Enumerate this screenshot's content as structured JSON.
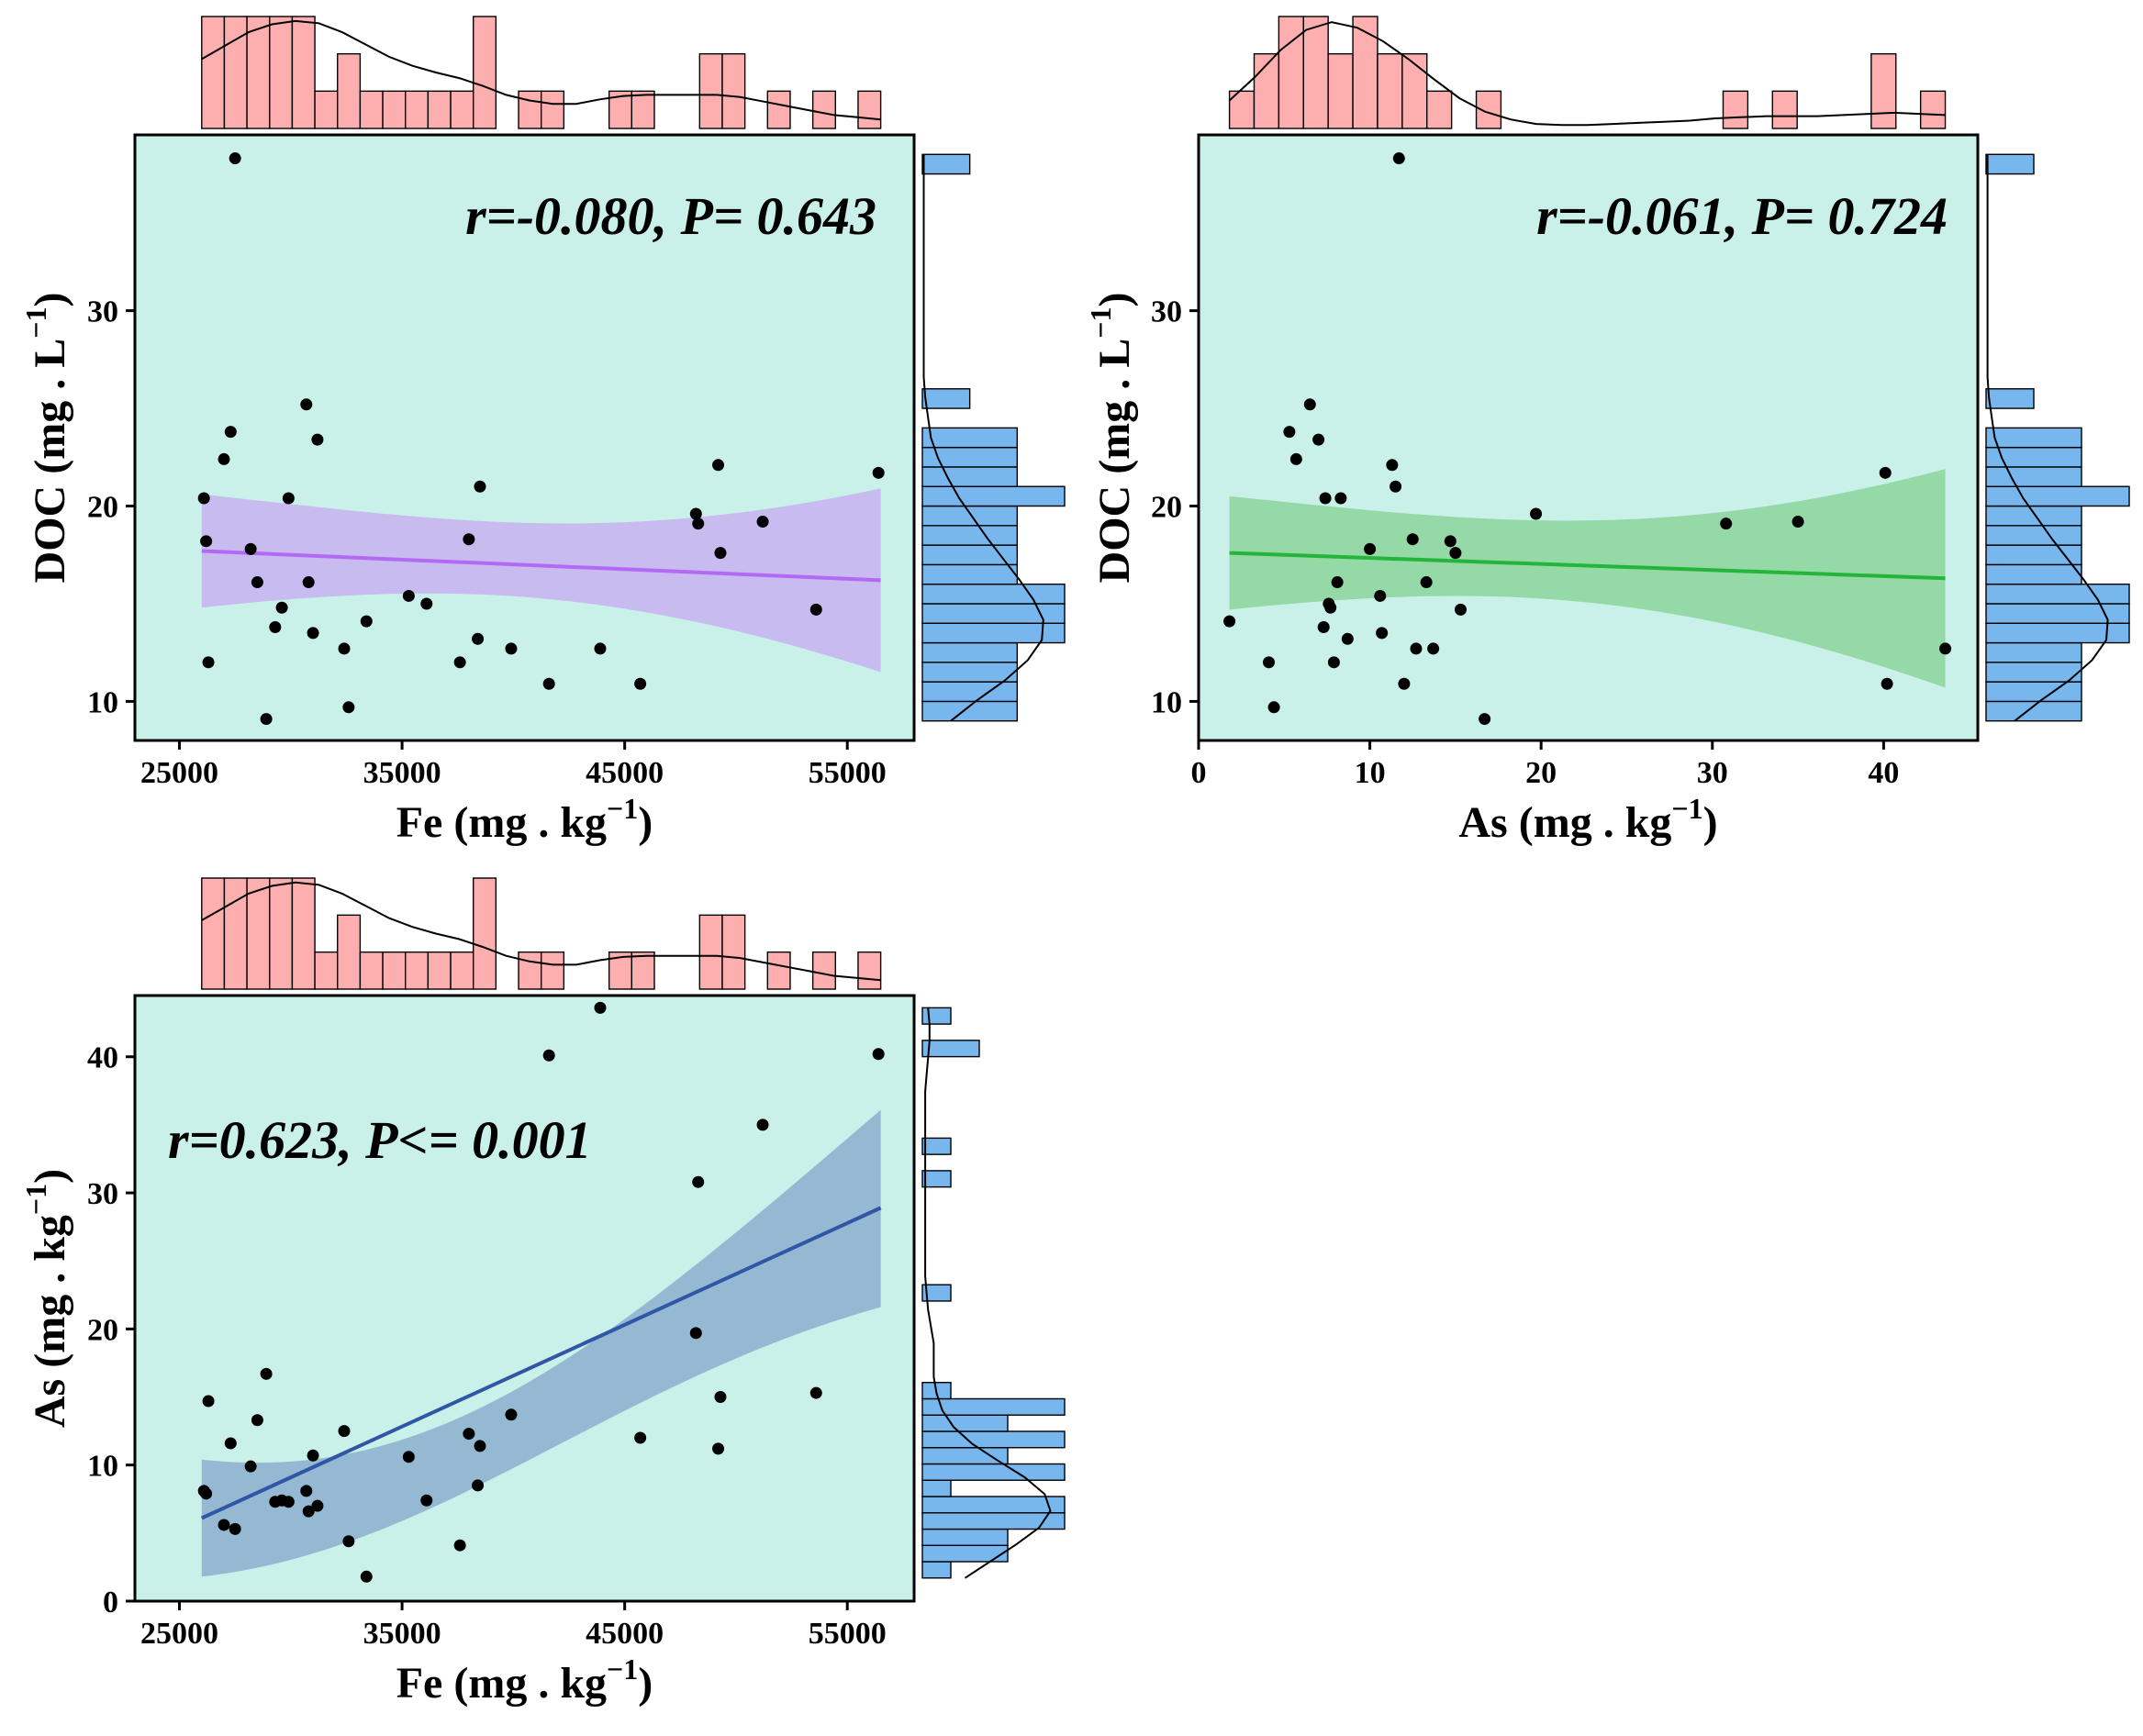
{
  "colors": {
    "panel_bg": "#c9f1e9",
    "top_hist": "#fdaeae",
    "side_hist": "#78b6ee",
    "point": "#000000",
    "axis": "#000000"
  },
  "chart_data": [
    {
      "type": "scatter",
      "title": "",
      "annotation": "r=-0.080, P= 0.643",
      "xlabel": "Fe (mg . kg⁻¹)",
      "ylabel": "DOC (mg . L⁻¹)",
      "xlim": [
        23000,
        58000
      ],
      "ylim": [
        8,
        39
      ],
      "x_ticks": [
        25000,
        35000,
        45000,
        55000
      ],
      "x_tick_labels": [
        "25000",
        "35000",
        "45000",
        "55000"
      ],
      "y_ticks": [
        10,
        20,
        30
      ],
      "y_tick_labels": [
        "10",
        "20",
        "30"
      ],
      "line_color": "#b469f4",
      "band_color": "#c7b5ef",
      "fit": {
        "x": [
          26000,
          56500
        ],
        "y": [
          17.7,
          16.2
        ],
        "lower": [
          14.8,
          11.5
        ],
        "upper": [
          20.6,
          20.9
        ]
      },
      "points": {
        "x": [
          26100,
          26200,
          26300,
          27000,
          27300,
          27500,
          28200,
          28500,
          28900,
          29300,
          29600,
          29900,
          30700,
          30800,
          31000,
          31200,
          32400,
          32600,
          33400,
          35300,
          36100,
          37600,
          38000,
          38400,
          38500,
          39900,
          41600,
          43900,
          45700,
          48200,
          48300,
          49200,
          49300,
          51200,
          53600,
          56400
        ],
        "y": [
          20.4,
          18.2,
          12.0,
          22.4,
          23.8,
          37.8,
          17.8,
          16.1,
          9.1,
          13.8,
          14.8,
          20.4,
          25.2,
          16.1,
          13.5,
          23.4,
          12.7,
          9.7,
          14.1,
          15.4,
          15.0,
          12.0,
          18.3,
          13.2,
          21.0,
          12.7,
          10.9,
          12.7,
          10.9,
          19.6,
          19.1,
          22.1,
          17.6,
          19.2,
          14.7,
          21.7
        ]
      },
      "top_hist": {
        "range": [
          26000,
          56500
        ],
        "counts": [
          3,
          3,
          3,
          3,
          3,
          1,
          2,
          1,
          1,
          1,
          1,
          1,
          3,
          0,
          1,
          1,
          0,
          0,
          1,
          1,
          0,
          0,
          2,
          2,
          0,
          1,
          0,
          1,
          0,
          1
        ],
        "density": [
          0.62,
          0.74,
          0.86,
          0.93,
          0.96,
          0.94,
          0.86,
          0.75,
          0.64,
          0.56,
          0.5,
          0.45,
          0.38,
          0.3,
          0.25,
          0.22,
          0.22,
          0.26,
          0.29,
          0.3,
          0.3,
          0.3,
          0.3,
          0.28,
          0.24,
          0.2,
          0.16,
          0.12,
          0.1,
          0.08
        ]
      },
      "side_hist": {
        "range": [
          9,
          38
        ],
        "counts": [
          4,
          4,
          4,
          4,
          6,
          6,
          6,
          4,
          4,
          4,
          4,
          6,
          4,
          4,
          4,
          0,
          2,
          0,
          0,
          0,
          0,
          0,
          0,
          0,
          0,
          0,
          0,
          0,
          2
        ],
        "density": [
          0.2,
          0.38,
          0.58,
          0.74,
          0.84,
          0.85,
          0.78,
          0.68,
          0.57,
          0.46,
          0.36,
          0.26,
          0.18,
          0.11,
          0.06,
          0.04,
          0.02,
          0.01,
          0.01,
          0.01,
          0.01,
          0.01,
          0.01,
          0.01,
          0.01,
          0.01,
          0.01,
          0.01,
          0.01
        ]
      }
    },
    {
      "type": "scatter",
      "title": "",
      "annotation": "r=-0.061, P= 0.724",
      "xlabel": "As (mg . kg⁻¹)",
      "ylabel": "DOC (mg . L⁻¹)",
      "xlim": [
        0,
        45.5
      ],
      "ylim": [
        8,
        39
      ],
      "x_ticks": [
        0,
        10,
        20,
        30,
        40
      ],
      "x_tick_labels": [
        "0",
        "10",
        "20",
        "30",
        "40"
      ],
      "y_ticks": [
        10,
        20,
        30
      ],
      "y_tick_labels": [
        "10",
        "20",
        "30"
      ],
      "line_color": "#23b53c",
      "band_color": "#8ed69e",
      "fit": {
        "x": [
          1.8,
          43.6
        ],
        "y": [
          17.6,
          16.3
        ],
        "lower": [
          14.7,
          10.7
        ],
        "upper": [
          20.5,
          21.9
        ]
      },
      "points": {
        "x": [
          1.8,
          4.1,
          4.4,
          5.3,
          5.7,
          6.5,
          7.0,
          7.3,
          7.4,
          7.6,
          7.7,
          7.9,
          8.1,
          8.3,
          8.7,
          10.0,
          10.6,
          10.7,
          11.3,
          11.5,
          11.7,
          12.0,
          12.5,
          12.7,
          13.3,
          13.7,
          14.7,
          15.0,
          15.3,
          16.7,
          19.7,
          30.8,
          35.0,
          40.1,
          40.2,
          43.6
        ],
        "y": [
          14.1,
          12.0,
          9.7,
          23.8,
          22.4,
          25.2,
          23.4,
          13.8,
          20.4,
          15.0,
          14.8,
          12.0,
          16.1,
          20.4,
          13.2,
          17.8,
          15.4,
          13.5,
          22.1,
          21.0,
          37.8,
          10.9,
          18.3,
          12.7,
          16.1,
          12.7,
          18.2,
          17.6,
          14.7,
          9.1,
          19.6,
          19.1,
          19.2,
          21.7,
          10.9,
          12.7
        ]
      },
      "top_hist": {
        "range": [
          1.8,
          43.6
        ],
        "counts": [
          1,
          2,
          3,
          3,
          2,
          3,
          2,
          2,
          1,
          0,
          1,
          0,
          0,
          0,
          0,
          0,
          0,
          0,
          0,
          0,
          1,
          0,
          1,
          0,
          0,
          0,
          2,
          0,
          1
        ],
        "density": [
          0.25,
          0.46,
          0.7,
          0.88,
          0.95,
          0.9,
          0.78,
          0.62,
          0.44,
          0.27,
          0.15,
          0.08,
          0.04,
          0.03,
          0.03,
          0.04,
          0.05,
          0.06,
          0.07,
          0.09,
          0.1,
          0.11,
          0.11,
          0.11,
          0.12,
          0.13,
          0.14,
          0.13,
          0.12
        ]
      },
      "side_hist": {
        "range": [
          9,
          38
        ],
        "counts": [
          4,
          4,
          4,
          4,
          6,
          6,
          6,
          4,
          4,
          4,
          4,
          6,
          4,
          4,
          4,
          0,
          2,
          0,
          0,
          0,
          0,
          0,
          0,
          0,
          0,
          0,
          0,
          0,
          2
        ],
        "density": [
          0.2,
          0.38,
          0.58,
          0.74,
          0.84,
          0.85,
          0.78,
          0.68,
          0.57,
          0.46,
          0.36,
          0.26,
          0.18,
          0.11,
          0.06,
          0.04,
          0.02,
          0.01,
          0.01,
          0.01,
          0.01,
          0.01,
          0.01,
          0.01,
          0.01,
          0.01,
          0.01,
          0.01,
          0.01
        ]
      }
    },
    {
      "type": "scatter",
      "title": "",
      "annotation": "r=0.623, P<= 0.001",
      "xlabel": "Fe (mg . kg⁻¹)",
      "ylabel": "As (mg . kg⁻¹)",
      "xlim": [
        23000,
        58000
      ],
      "ylim": [
        0,
        44.5
      ],
      "x_ticks": [
        25000,
        35000,
        45000,
        55000
      ],
      "x_tick_labels": [
        "25000",
        "35000",
        "45000",
        "55000"
      ],
      "y_ticks": [
        0,
        10,
        20,
        30,
        40
      ],
      "y_tick_labels": [
        "0",
        "10",
        "20",
        "30",
        "40"
      ],
      "line_color": "#3056a6",
      "band_color": "#8fb3cf",
      "fit": {
        "x": [
          26000,
          56500
        ],
        "y": [
          6.1,
          28.9
        ],
        "lower": [
          1.8,
          21.6
        ],
        "upper": [
          10.4,
          36.1
        ]
      },
      "points": {
        "x": [
          26100,
          26200,
          26300,
          27000,
          27300,
          27500,
          28200,
          28500,
          28900,
          29300,
          29600,
          29900,
          30700,
          30800,
          31000,
          31200,
          32400,
          32600,
          33400,
          35300,
          36100,
          37600,
          38000,
          38400,
          38500,
          39900,
          41600,
          43900,
          45700,
          48200,
          48300,
          49200,
          49300,
          51200,
          53600,
          56400
        ],
        "y": [
          8.1,
          7.9,
          14.7,
          5.6,
          11.6,
          5.3,
          9.9,
          13.3,
          16.7,
          7.3,
          7.4,
          7.3,
          8.1,
          6.6,
          10.7,
          7.0,
          12.5,
          4.4,
          1.8,
          10.6,
          7.4,
          4.1,
          12.3,
          8.5,
          11.4,
          13.7,
          40.1,
          43.6,
          12.0,
          19.7,
          30.8,
          11.2,
          15.0,
          35.0,
          15.3,
          40.2
        ]
      },
      "top_hist": {
        "range": [
          26000,
          56500
        ],
        "counts": [
          3,
          3,
          3,
          3,
          3,
          1,
          2,
          1,
          1,
          1,
          1,
          1,
          3,
          0,
          1,
          1,
          0,
          0,
          1,
          1,
          0,
          0,
          2,
          2,
          0,
          1,
          0,
          1,
          0,
          1
        ],
        "density": [
          0.62,
          0.74,
          0.86,
          0.93,
          0.96,
          0.94,
          0.86,
          0.75,
          0.64,
          0.56,
          0.5,
          0.45,
          0.38,
          0.3,
          0.25,
          0.22,
          0.22,
          0.26,
          0.29,
          0.3,
          0.3,
          0.3,
          0.3,
          0.28,
          0.24,
          0.2,
          0.16,
          0.12,
          0.1,
          0.08
        ]
      },
      "side_hist": {
        "range": [
          1.7,
          43.6
        ],
        "counts": [
          1,
          3,
          3,
          5,
          5,
          1,
          5,
          3,
          5,
          3,
          5,
          1,
          0,
          0,
          0,
          0,
          0,
          1,
          0,
          0,
          0,
          0,
          0,
          0,
          1,
          0,
          1,
          0,
          0,
          0,
          0,
          0,
          2,
          0,
          1
        ],
        "density": [
          0.3,
          0.48,
          0.66,
          0.82,
          0.9,
          0.86,
          0.72,
          0.53,
          0.35,
          0.22,
          0.14,
          0.1,
          0.08,
          0.08,
          0.08,
          0.06,
          0.04,
          0.03,
          0.02,
          0.02,
          0.02,
          0.02,
          0.02,
          0.02,
          0.02,
          0.02,
          0.02,
          0.02,
          0.02,
          0.02,
          0.03,
          0.04,
          0.05,
          0.05,
          0.04
        ]
      }
    }
  ]
}
